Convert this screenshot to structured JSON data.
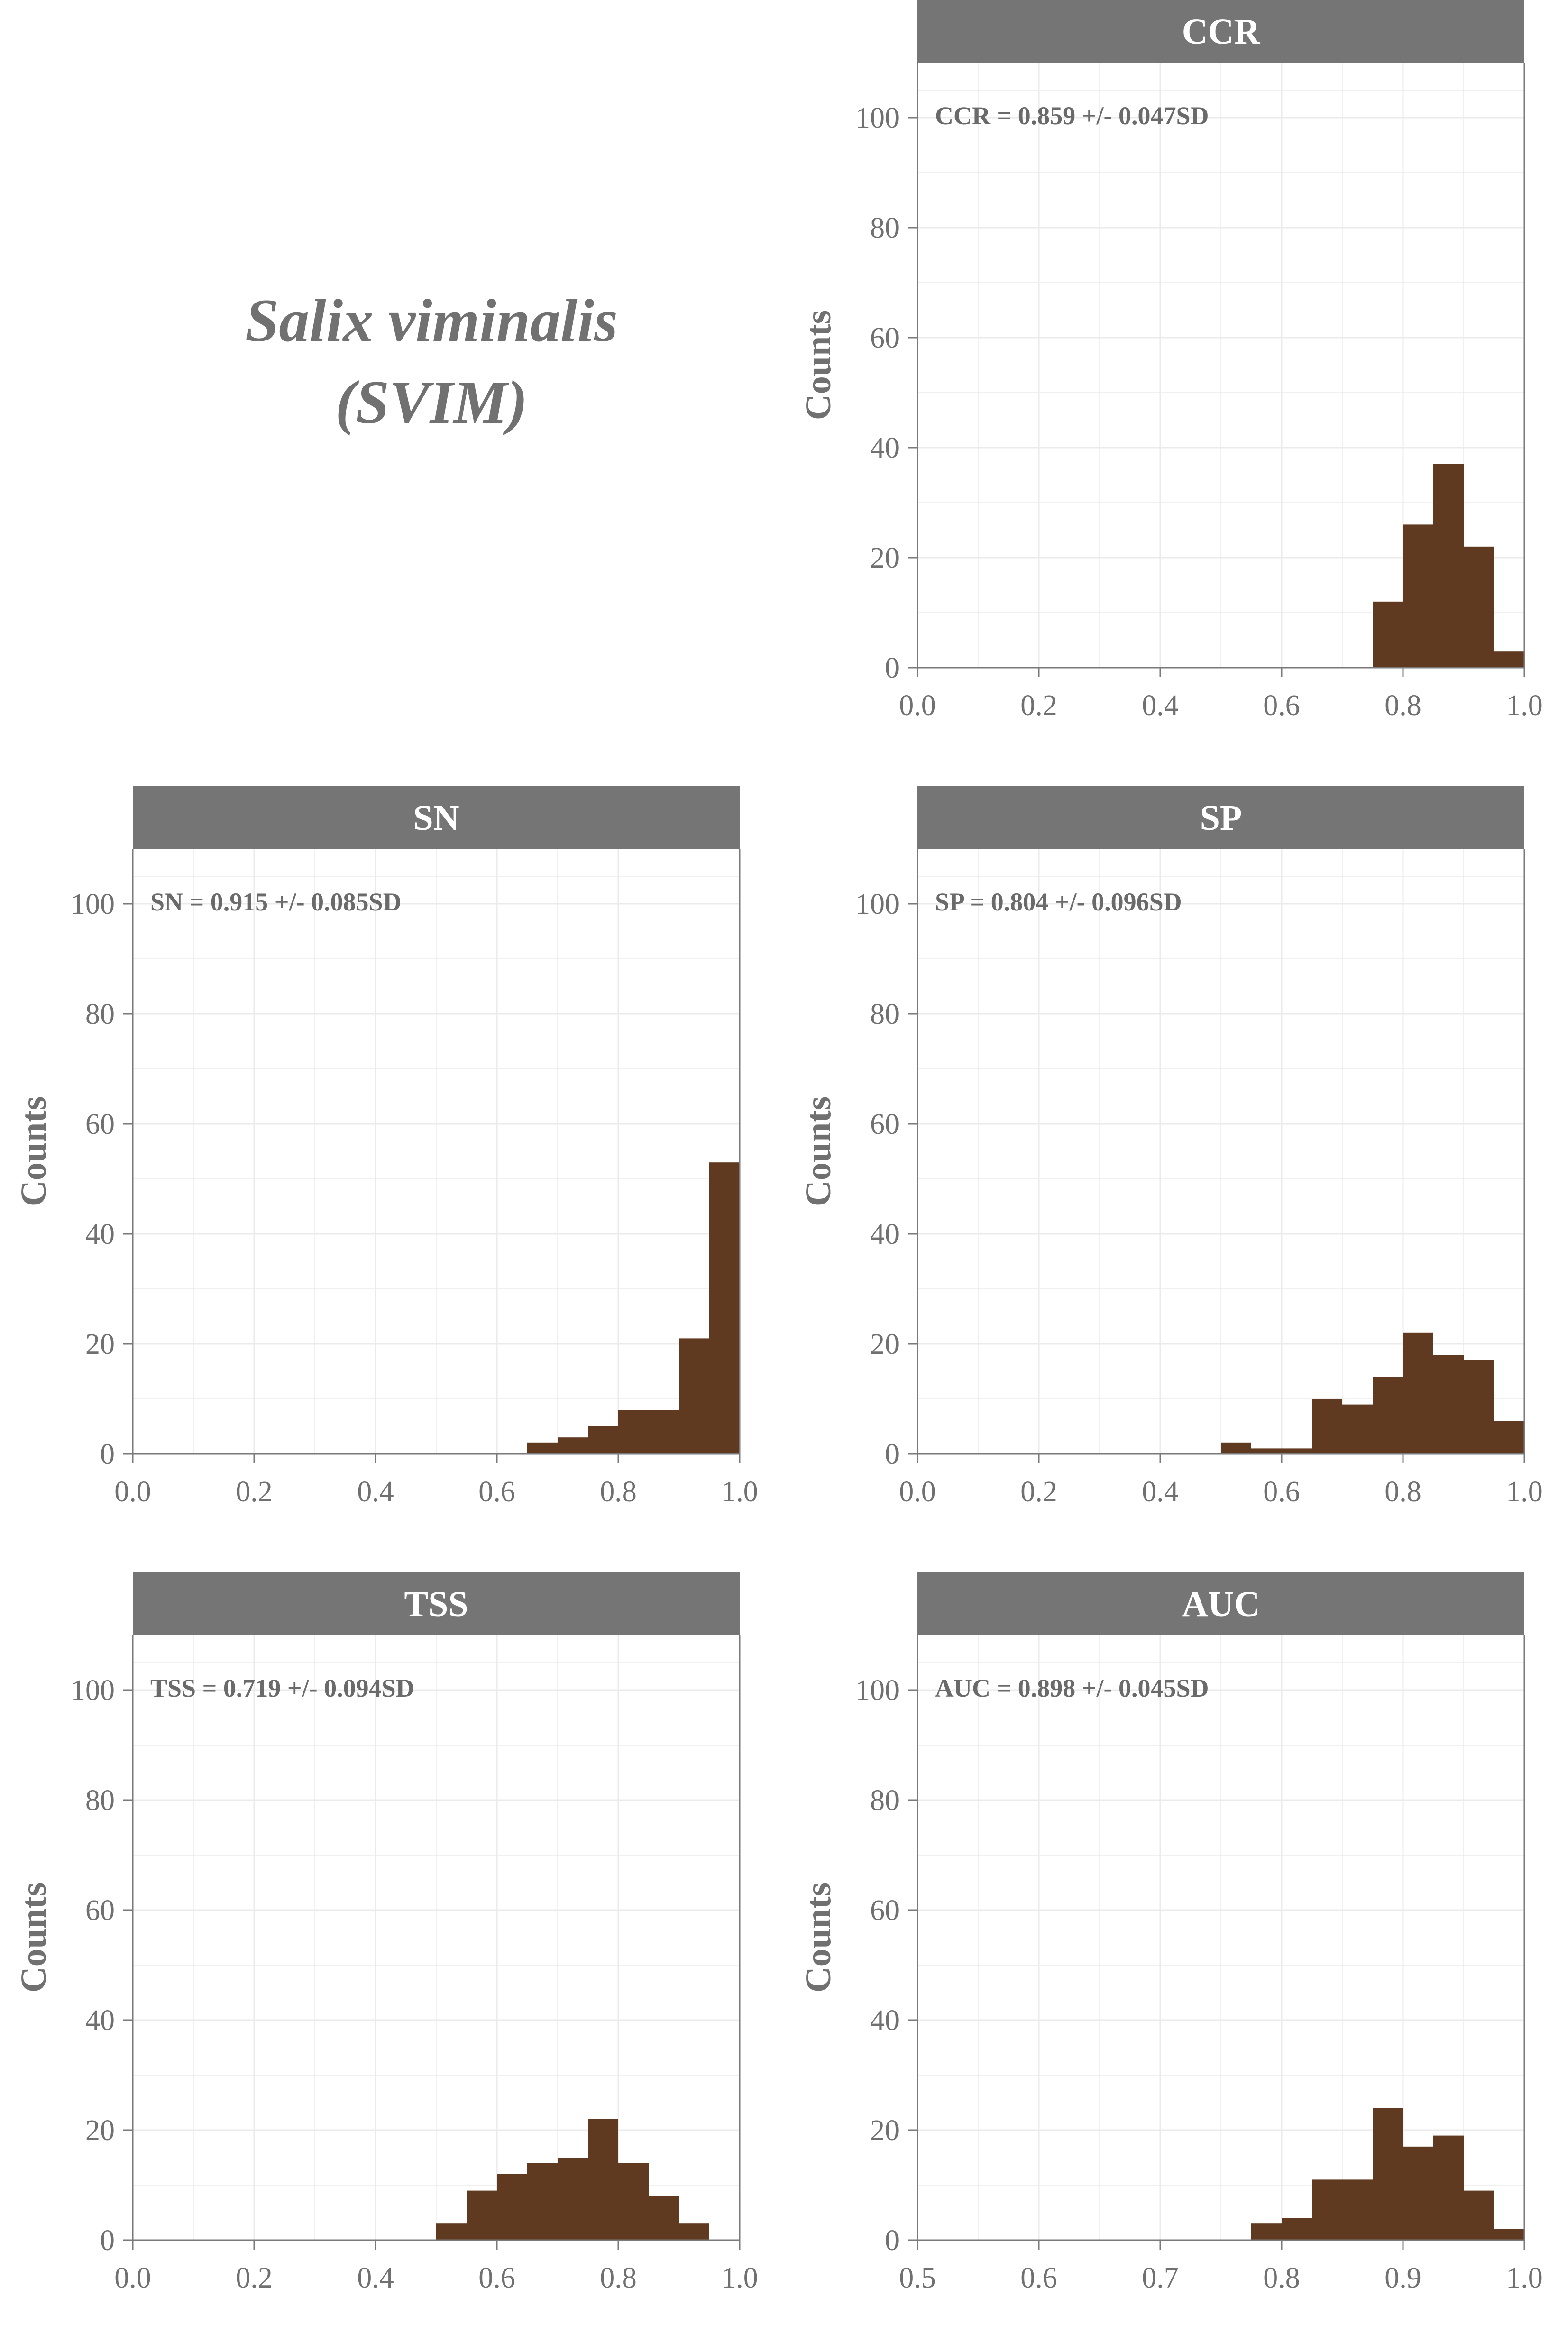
{
  "species": {
    "name": "Salix viminalis",
    "code": "(SVIM)"
  },
  "colors": {
    "bar": "#603a20",
    "strip": "#757575",
    "strip_text": "#ffffff",
    "axis": "#7a7a7a",
    "grid": "#ebebeb",
    "text": "#707070",
    "annotation": "#6a6a6a"
  },
  "chart_data": [
    {
      "type": "bar",
      "title": "CCR",
      "annotation": "CCR = 0.859 +/- 0.047SD",
      "ylabel": "Counts",
      "xlabel": "",
      "xlim": [
        0.0,
        1.0
      ],
      "ylim": [
        0,
        110
      ],
      "xticks": [
        "0.0",
        "0.2",
        "0.4",
        "0.6",
        "0.8",
        "1.0"
      ],
      "yticks": [
        "0",
        "20",
        "40",
        "60",
        "80",
        "100"
      ],
      "grid": true,
      "bins": [
        {
          "x0": 0.75,
          "x1": 0.8,
          "count": 12
        },
        {
          "x0": 0.8,
          "x1": 0.85,
          "count": 26
        },
        {
          "x0": 0.85,
          "x1": 0.9,
          "count": 37
        },
        {
          "x0": 0.9,
          "x1": 0.95,
          "count": 22
        },
        {
          "x0": 0.95,
          "x1": 1.0,
          "count": 3
        }
      ]
    },
    {
      "type": "bar",
      "title": "SN",
      "annotation": "SN = 0.915 +/- 0.085SD",
      "ylabel": "Counts",
      "xlabel": "",
      "xlim": [
        0.0,
        1.0
      ],
      "ylim": [
        0,
        110
      ],
      "xticks": [
        "0.0",
        "0.2",
        "0.4",
        "0.6",
        "0.8",
        "1.0"
      ],
      "yticks": [
        "0",
        "20",
        "40",
        "60",
        "80",
        "100"
      ],
      "grid": true,
      "bins": [
        {
          "x0": 0.65,
          "x1": 0.7,
          "count": 2
        },
        {
          "x0": 0.7,
          "x1": 0.75,
          "count": 3
        },
        {
          "x0": 0.75,
          "x1": 0.8,
          "count": 5
        },
        {
          "x0": 0.8,
          "x1": 0.85,
          "count": 8
        },
        {
          "x0": 0.85,
          "x1": 0.9,
          "count": 8
        },
        {
          "x0": 0.9,
          "x1": 0.95,
          "count": 21
        },
        {
          "x0": 0.95,
          "x1": 1.0,
          "count": 53
        }
      ]
    },
    {
      "type": "bar",
      "title": "SP",
      "annotation": "SP = 0.804 +/- 0.096SD",
      "ylabel": "Counts",
      "xlabel": "",
      "xlim": [
        0.0,
        1.0
      ],
      "ylim": [
        0,
        110
      ],
      "xticks": [
        "0.0",
        "0.2",
        "0.4",
        "0.6",
        "0.8",
        "1.0"
      ],
      "yticks": [
        "0",
        "20",
        "40",
        "60",
        "80",
        "100"
      ],
      "grid": true,
      "bins": [
        {
          "x0": 0.5,
          "x1": 0.55,
          "count": 2
        },
        {
          "x0": 0.55,
          "x1": 0.6,
          "count": 1
        },
        {
          "x0": 0.6,
          "x1": 0.65,
          "count": 1
        },
        {
          "x0": 0.65,
          "x1": 0.7,
          "count": 10
        },
        {
          "x0": 0.7,
          "x1": 0.75,
          "count": 9
        },
        {
          "x0": 0.75,
          "x1": 0.8,
          "count": 14
        },
        {
          "x0": 0.8,
          "x1": 0.85,
          "count": 22
        },
        {
          "x0": 0.85,
          "x1": 0.9,
          "count": 18
        },
        {
          "x0": 0.9,
          "x1": 0.95,
          "count": 17
        },
        {
          "x0": 0.95,
          "x1": 1.0,
          "count": 6
        }
      ]
    },
    {
      "type": "bar",
      "title": "TSS",
      "annotation": "TSS = 0.719 +/- 0.094SD",
      "ylabel": "Counts",
      "xlabel": "",
      "xlim": [
        0.0,
        1.0
      ],
      "ylim": [
        0,
        110
      ],
      "xticks": [
        "0.0",
        "0.2",
        "0.4",
        "0.6",
        "0.8",
        "1.0"
      ],
      "yticks": [
        "0",
        "20",
        "40",
        "60",
        "80",
        "100"
      ],
      "grid": true,
      "bins": [
        {
          "x0": 0.5,
          "x1": 0.55,
          "count": 3
        },
        {
          "x0": 0.55,
          "x1": 0.6,
          "count": 9
        },
        {
          "x0": 0.6,
          "x1": 0.65,
          "count": 12
        },
        {
          "x0": 0.65,
          "x1": 0.7,
          "count": 14
        },
        {
          "x0": 0.7,
          "x1": 0.75,
          "count": 15
        },
        {
          "x0": 0.75,
          "x1": 0.8,
          "count": 22
        },
        {
          "x0": 0.8,
          "x1": 0.85,
          "count": 14
        },
        {
          "x0": 0.85,
          "x1": 0.9,
          "count": 8
        },
        {
          "x0": 0.9,
          "x1": 0.95,
          "count": 3
        }
      ]
    },
    {
      "type": "bar",
      "title": "AUC",
      "annotation": "AUC = 0.898 +/- 0.045SD",
      "ylabel": "Counts",
      "xlabel": "",
      "xlim": [
        0.5,
        1.0
      ],
      "ylim": [
        0,
        110
      ],
      "xticks": [
        "0.5",
        "0.6",
        "0.7",
        "0.8",
        "0.9",
        "1.0"
      ],
      "yticks": [
        "0",
        "20",
        "40",
        "60",
        "80",
        "100"
      ],
      "grid": true,
      "bins": [
        {
          "x0": 0.775,
          "x1": 0.8,
          "count": 3
        },
        {
          "x0": 0.8,
          "x1": 0.825,
          "count": 4
        },
        {
          "x0": 0.825,
          "x1": 0.85,
          "count": 11
        },
        {
          "x0": 0.85,
          "x1": 0.875,
          "count": 11
        },
        {
          "x0": 0.875,
          "x1": 0.9,
          "count": 24
        },
        {
          "x0": 0.9,
          "x1": 0.925,
          "count": 17
        },
        {
          "x0": 0.925,
          "x1": 0.95,
          "count": 19
        },
        {
          "x0": 0.95,
          "x1": 0.975,
          "count": 9
        },
        {
          "x0": 0.975,
          "x1": 1.0,
          "count": 2
        }
      ]
    }
  ]
}
